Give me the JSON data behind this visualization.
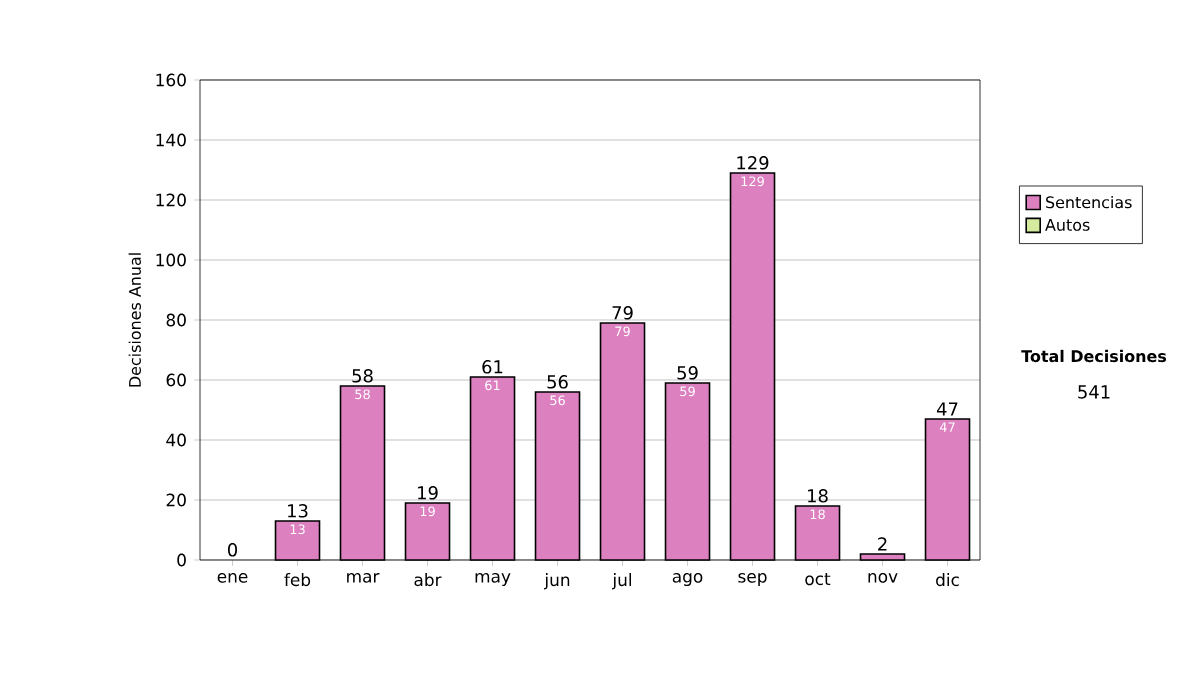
{
  "chart_data": {
    "type": "bar",
    "stacked": true,
    "ylabel": "Decisiones Anual",
    "categories": [
      "ene",
      "feb",
      "mar",
      "abr",
      "may",
      "jun",
      "jul",
      "ago",
      "sep",
      "oct",
      "nov",
      "dic"
    ],
    "series": [
      {
        "name": "Sentencias",
        "color": "#dc80c0",
        "values": [
          0,
          13,
          58,
          19,
          61,
          56,
          79,
          59,
          129,
          18,
          2,
          47
        ],
        "value_labels": [
          null,
          "13",
          "58",
          "19",
          "61",
          "56",
          "79",
          "59",
          "129",
          "18",
          null,
          "47"
        ]
      },
      {
        "name": "Autos",
        "color": "#d4ea9c",
        "values": [
          0,
          0,
          0,
          0,
          0,
          0,
          0,
          0,
          0,
          0,
          0,
          0
        ]
      }
    ],
    "totals": [
      "0",
      "13",
      "58",
      "19",
      "61",
      "56",
      "79",
      "59",
      "129",
      "18",
      "2",
      "47"
    ],
    "ylim": [
      0,
      160
    ],
    "yticks": [
      0,
      20,
      40,
      60,
      80,
      100,
      120,
      140,
      160
    ],
    "grid": "y",
    "legend": "right",
    "annotations": [
      "Total Decisiones",
      "541"
    ]
  }
}
